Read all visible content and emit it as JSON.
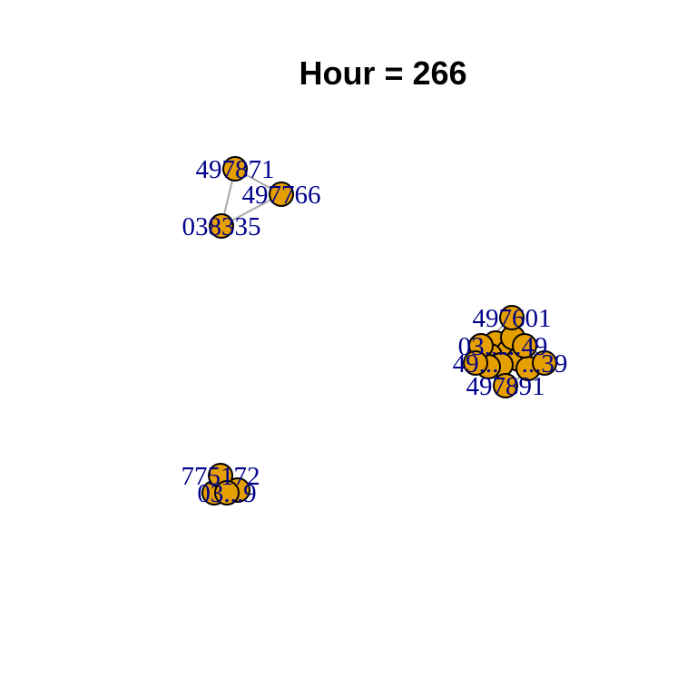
{
  "title": "Hour = 266",
  "colors": {
    "node_fill": "#E69F00",
    "node_stroke": "#000000",
    "label": "#00008B",
    "edge": "#A9A9A9",
    "background": "#FFFFFF"
  },
  "graph": {
    "nodes": [
      {
        "id": "497871"
      },
      {
        "id": "497766"
      },
      {
        "id": "038335"
      },
      {
        "id": "497601"
      },
      {
        "id": "03..."
      },
      {
        "id": "...49"
      },
      {
        "id": "49..."
      },
      {
        "id": "...39"
      },
      {
        "id": "497891"
      },
      {
        "id": "775172"
      },
      {
        "id": "03...9"
      }
    ],
    "edges": [
      [
        "497871",
        "038335"
      ],
      [
        "497871",
        "497766"
      ],
      [
        "497766",
        "038335"
      ],
      [
        "497601",
        "03..."
      ],
      [
        "497601",
        "...49"
      ],
      [
        "03...",
        "...49"
      ],
      [
        "49...",
        "...39"
      ],
      [
        "49...",
        "497891"
      ],
      [
        "...39",
        "497891"
      ],
      [
        "03...",
        "49..."
      ],
      [
        "...49",
        "...39"
      ],
      [
        "775172",
        "03...9"
      ]
    ]
  }
}
